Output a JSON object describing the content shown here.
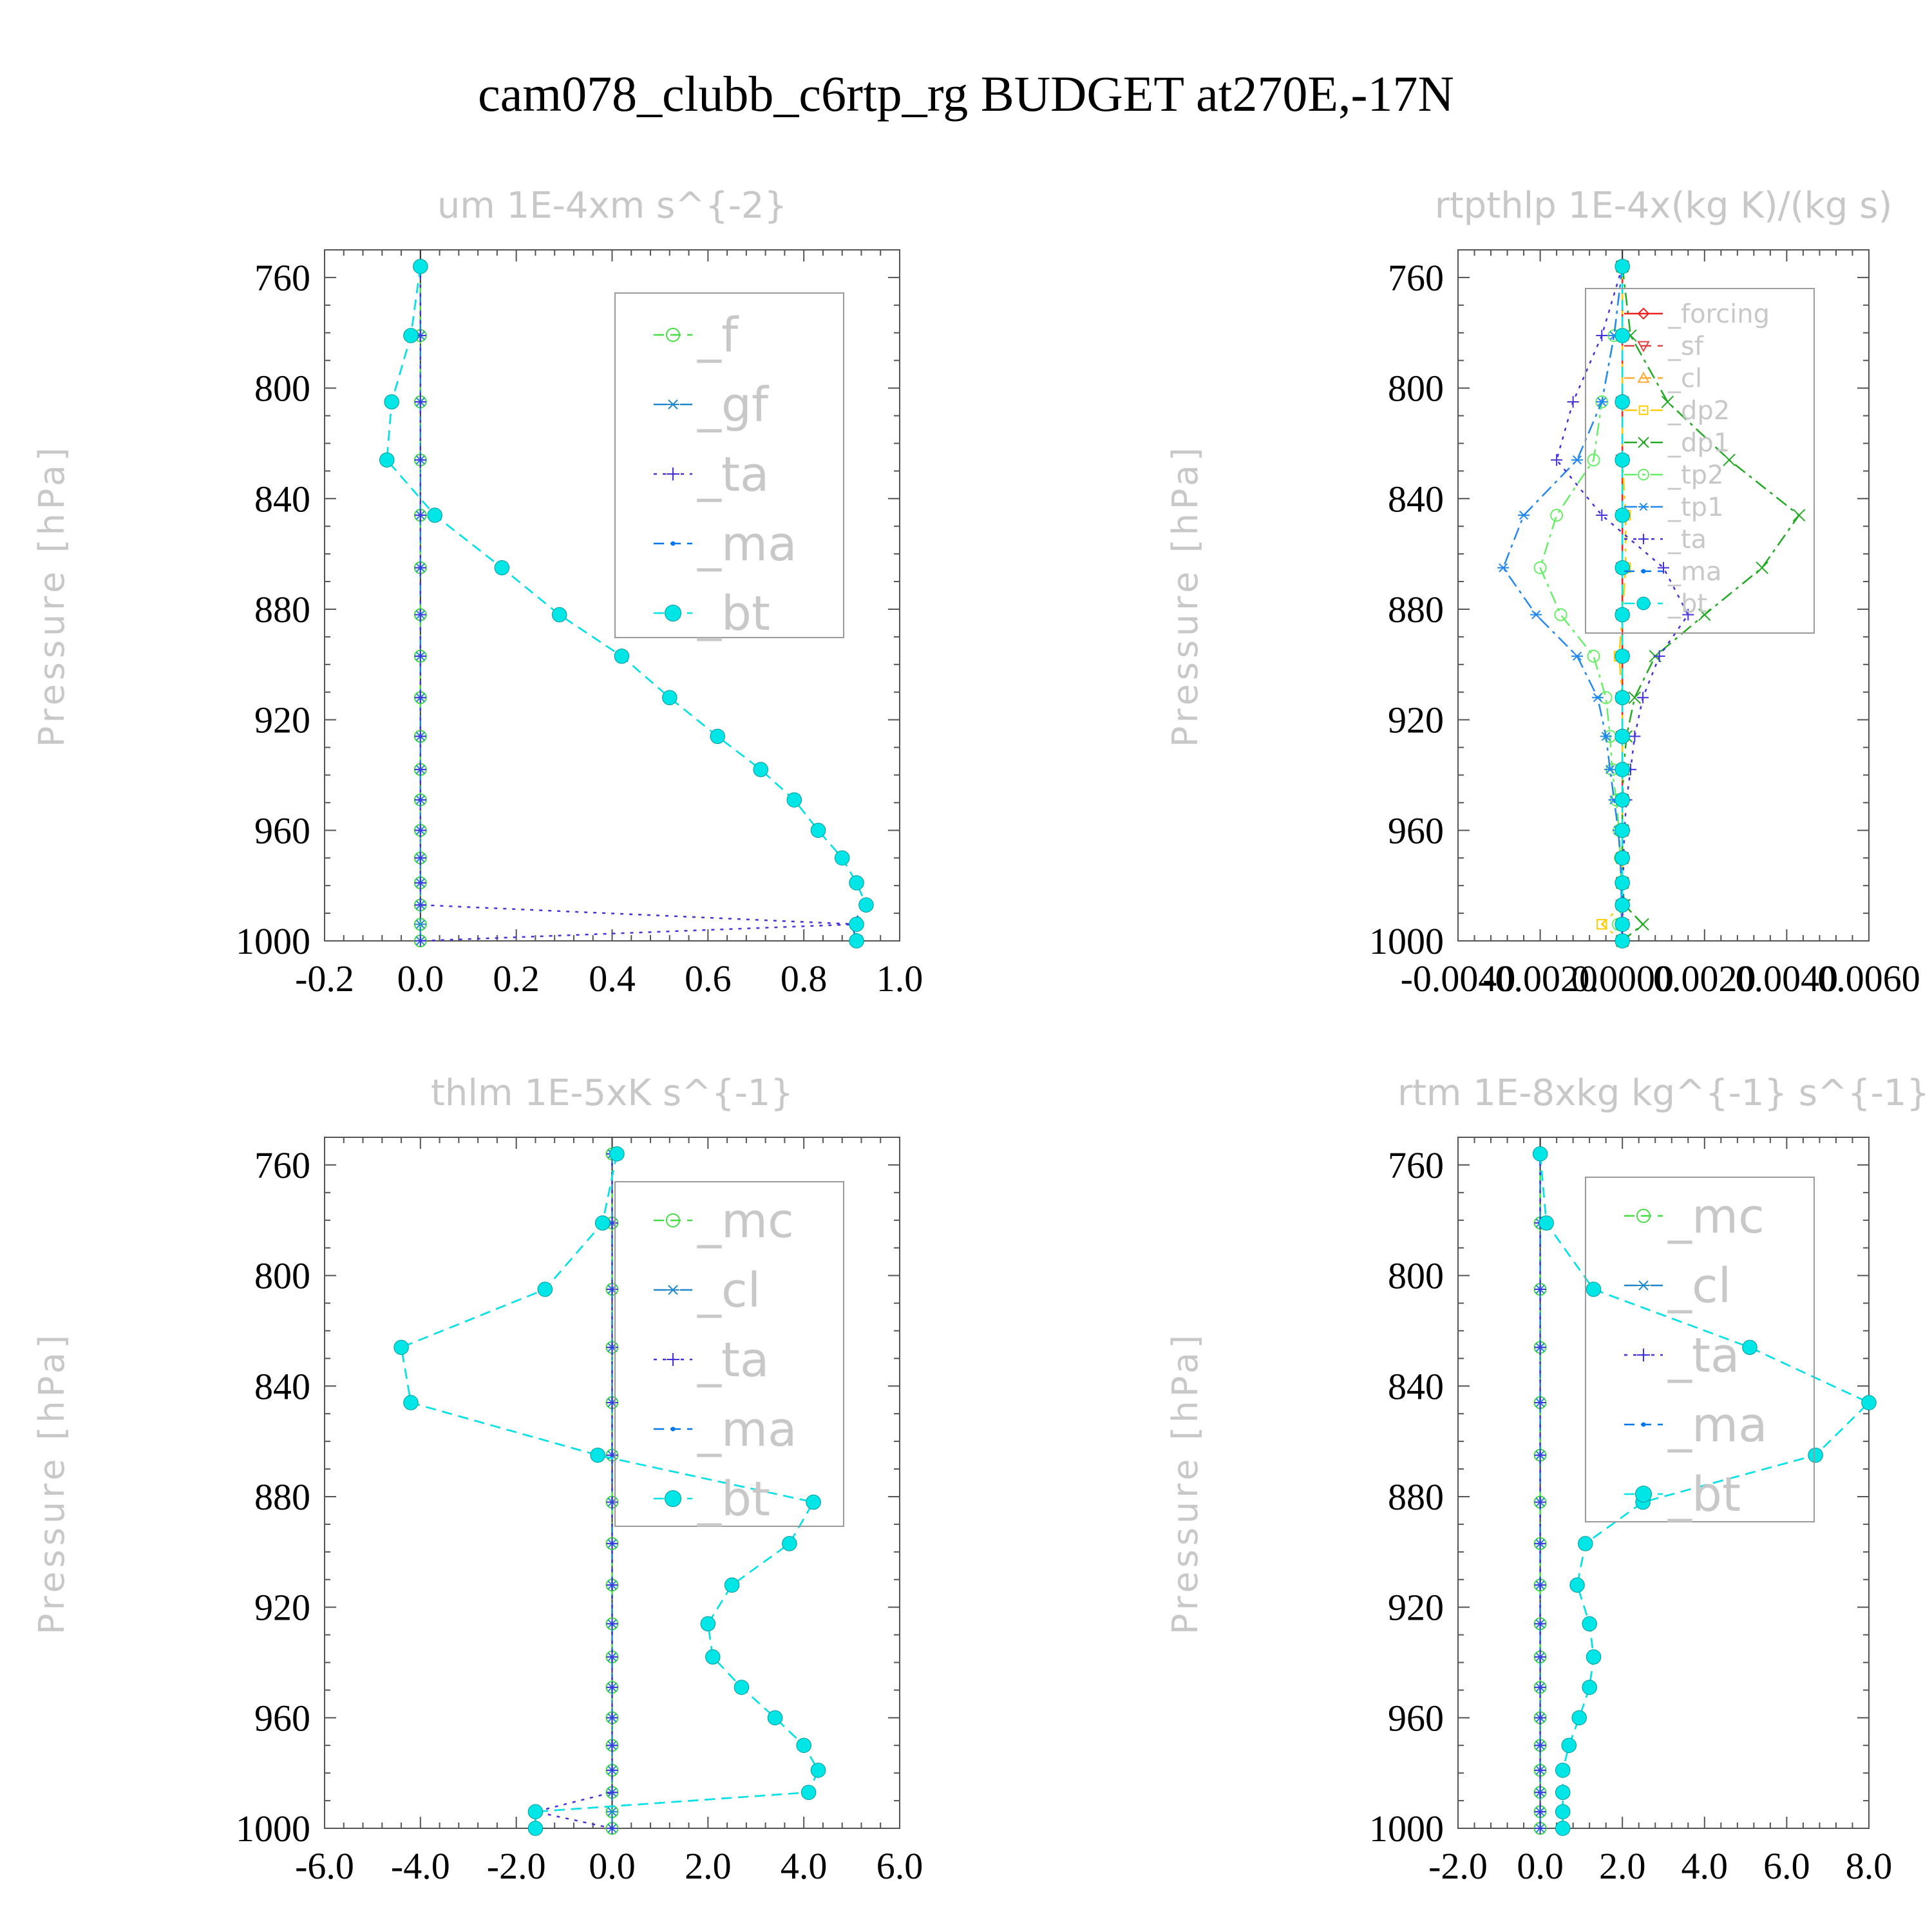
{
  "title": "cam078_clubb_c6rtp_rg  BUDGET at270E,-17N",
  "colors": {
    "f": "#44dd44",
    "gf": "#2288cc",
    "ta": "#4433dd",
    "ma": "#0077ee",
    "bt": "#00e6e6",
    "mc": "#44dd44",
    "cl": "#2288cc",
    "forcing": "#ee2222",
    "sf": "#dd4444",
    "cl_rtp": "#ffaa33",
    "dp2": "#ffcc00",
    "dp1": "#22aa22",
    "tp2": "#66ee66",
    "tp1": "#2288ee"
  },
  "chart_data": [
    {
      "type": "line",
      "title": "um  1E-4xm s^{-2}",
      "ylabel": "Pressure [hPa]",
      "xlim": [
        -0.2,
        1.0
      ],
      "ylim": [
        1000,
        750
      ],
      "xticks": [
        "-0.2",
        "0.0",
        "0.2",
        "0.4",
        "0.6",
        "0.8",
        "1.0"
      ],
      "yticks": [
        "760",
        "800",
        "840",
        "880",
        "920",
        "960",
        "1000"
      ],
      "pressure": [
        756,
        781,
        805,
        826,
        846,
        865,
        882,
        897,
        912,
        926,
        938,
        949,
        960,
        970,
        979,
        987,
        994,
        1000
      ],
      "series": [
        {
          "name": "_f",
          "key": "f",
          "style": "dash",
          "marker": "circle",
          "x": [
            0,
            0,
            0,
            0,
            0,
            0,
            0,
            0,
            0,
            0,
            0,
            0,
            0,
            0,
            0,
            0,
            0,
            0
          ]
        },
        {
          "name": "_gf",
          "key": "gf",
          "style": "dashdot",
          "marker": "asterisk",
          "x": [
            0,
            0,
            0,
            0,
            0,
            0,
            0,
            0,
            0,
            0,
            0,
            0,
            0,
            0,
            0,
            0,
            0,
            0
          ]
        },
        {
          "name": "_ta",
          "key": "ta",
          "style": "dot",
          "marker": "plus",
          "x": [
            0,
            0,
            0,
            0,
            0,
            0,
            0,
            0,
            0,
            0,
            0,
            0,
            0,
            0,
            0,
            0,
            0.91,
            0
          ]
        },
        {
          "name": "_ma",
          "key": "ma",
          "style": "dash",
          "marker": "dot",
          "x": [
            0,
            -0.02,
            -0.06,
            -0.07,
            0.03,
            0.17,
            0.29,
            0.42,
            0.52,
            0.62,
            0.71,
            0.78,
            0.83,
            0.88,
            0.91,
            0.93,
            0.9,
            0.91
          ]
        },
        {
          "name": "_bt",
          "key": "bt",
          "style": "dash",
          "marker": "filled",
          "x": [
            0,
            -0.02,
            -0.06,
            -0.07,
            0.03,
            0.17,
            0.29,
            0.42,
            0.52,
            0.62,
            0.71,
            0.78,
            0.83,
            0.88,
            0.91,
            0.93,
            0.91,
            0.91
          ]
        }
      ]
    },
    {
      "type": "line",
      "title": "rtpthlp  1E-4x(kg K)/(kg s)",
      "ylabel": "Pressure [hPa]",
      "xlim": [
        -0.004,
        0.006
      ],
      "ylim": [
        1000,
        750
      ],
      "xticks": [
        "-0.0040",
        "-0.0020",
        "0.0000",
        "0.0020",
        "0.0040",
        "0.0060"
      ],
      "yticks": [
        "760",
        "800",
        "840",
        "880",
        "920",
        "960",
        "1000"
      ],
      "pressure": [
        756,
        781,
        805,
        826,
        846,
        865,
        882,
        897,
        912,
        926,
        938,
        949,
        960,
        970,
        979,
        987,
        994,
        1000
      ],
      "series": [
        {
          "name": "_forcing",
          "key": "forcing",
          "style": "solid",
          "marker": "diamond",
          "x": [
            0,
            0,
            0,
            0,
            0,
            0,
            0,
            0,
            0,
            0,
            0,
            0,
            0,
            0,
            0,
            0,
            0,
            0
          ]
        },
        {
          "name": "_sf",
          "key": "sf",
          "style": "dash",
          "marker": "tri-down",
          "x": [
            0,
            0,
            0,
            0,
            0,
            0,
            0,
            0,
            0,
            0,
            0,
            0,
            0,
            0,
            0,
            0,
            0,
            0
          ]
        },
        {
          "name": "_cl",
          "key": "cl_rtp",
          "style": "dash",
          "marker": "tri-up",
          "x": [
            0,
            0,
            0,
            0,
            0,
            0,
            0,
            0,
            0,
            0,
            0,
            0,
            0,
            0,
            0,
            0,
            0,
            0
          ]
        },
        {
          "name": "_dp2",
          "key": "dp2",
          "style": "dashdot",
          "marker": "square",
          "x": [
            0,
            0,
            0,
            0,
            8e-05,
            8e-05,
            0,
            -8e-05,
            0,
            0,
            0,
            0,
            0,
            0,
            0,
            0,
            -0.0005,
            0
          ]
        },
        {
          "name": "_dp1",
          "key": "dp1",
          "style": "dashdot",
          "marker": "cross",
          "x": [
            0,
            0.0002,
            0.0011,
            0.0026,
            0.0043,
            0.0034,
            0.002,
            0.0008,
            0.0003,
            0.0001,
            3e-05,
            0,
            0,
            0,
            0,
            5e-05,
            0.0005,
            0
          ]
        },
        {
          "name": "_tp2",
          "key": "tp2",
          "style": "dashdot",
          "marker": "circle",
          "x": [
            0,
            -0.0002,
            -0.0005,
            -0.0007,
            -0.0016,
            -0.002,
            -0.0015,
            -0.0007,
            -0.0004,
            -0.0003,
            -0.00025,
            -0.00015,
            -8e-05,
            -5e-05,
            -3e-05,
            -2e-05,
            -0.0001,
            0
          ]
        },
        {
          "name": "_tp1",
          "key": "tp1",
          "style": "dashdot",
          "marker": "asterisk",
          "x": [
            0,
            -0.0002,
            -0.0005,
            -0.0011,
            -0.0024,
            -0.0029,
            -0.0021,
            -0.0011,
            -0.0006,
            -0.0004,
            -0.0003,
            -0.0002,
            -0.0001,
            -5e-05,
            -3e-05,
            -2e-05,
            -2e-05,
            0
          ]
        },
        {
          "name": "_ta",
          "key": "ta",
          "style": "dot",
          "marker": "plus",
          "x": [
            0,
            -0.0005,
            -0.0012,
            -0.0016,
            -0.0005,
            0.001,
            0.0016,
            0.0009,
            0.0005,
            0.0003,
            0.0002,
            0.0001,
            5e-05,
            3e-05,
            2e-05,
            1e-05,
            0,
            0
          ]
        },
        {
          "name": "_ma",
          "key": "ma",
          "style": "dash",
          "marker": "dot",
          "x": [
            0,
            0,
            0,
            0,
            0,
            0,
            0,
            0,
            0,
            0,
            0,
            0,
            0,
            0,
            0,
            0,
            0,
            0
          ]
        },
        {
          "name": "_bt",
          "key": "bt",
          "style": "dash",
          "marker": "filled",
          "x": [
            0,
            0,
            0,
            0,
            0,
            0,
            0,
            0,
            0,
            0,
            0,
            0,
            0,
            0,
            0,
            0,
            0,
            0
          ]
        }
      ]
    },
    {
      "type": "line",
      "title": "thlm  1E-5xK s^{-1}",
      "ylabel": "Pressure [hPa]",
      "xlim": [
        -6.0,
        6.0
      ],
      "ylim": [
        1000,
        750
      ],
      "xticks": [
        "-6.0",
        "-4.0",
        "-2.0",
        "0.0",
        "2.0",
        "4.0",
        "6.0"
      ],
      "yticks": [
        "760",
        "800",
        "840",
        "880",
        "920",
        "960",
        "1000"
      ],
      "pressure": [
        756,
        781,
        805,
        826,
        846,
        865,
        882,
        897,
        912,
        926,
        938,
        949,
        960,
        970,
        979,
        987,
        994,
        1000
      ],
      "series": [
        {
          "name": "_mc",
          "key": "mc",
          "style": "dash",
          "marker": "circle",
          "x": [
            0,
            0,
            0,
            0,
            0,
            0,
            0,
            0,
            0,
            0,
            0,
            0,
            0,
            0,
            0,
            0,
            0,
            0
          ]
        },
        {
          "name": "_cl",
          "key": "cl",
          "style": "dashdot",
          "marker": "asterisk",
          "x": [
            0,
            0,
            0,
            0,
            0,
            0,
            0,
            0,
            0,
            0,
            0,
            0,
            0,
            0,
            0,
            0,
            0,
            0
          ]
        },
        {
          "name": "_ta",
          "key": "ta",
          "style": "dot",
          "marker": "plus",
          "x": [
            0,
            0,
            0,
            0,
            0,
            0,
            0,
            0,
            0,
            0,
            0,
            0,
            0,
            0,
            0,
            0,
            -1.6,
            0
          ]
        },
        {
          "name": "_ma",
          "key": "ma",
          "style": "dash",
          "marker": "dot",
          "x": [
            0.1,
            -0.2,
            -1.4,
            -4.4,
            -4.2,
            -0.3,
            4.2,
            3.7,
            2.5,
            2.0,
            2.1,
            2.7,
            3.4,
            4.0,
            4.3,
            4.1,
            -1.6,
            -1.6
          ]
        },
        {
          "name": "_bt",
          "key": "bt",
          "style": "dash",
          "marker": "filled",
          "x": [
            0.1,
            -0.2,
            -1.4,
            -4.4,
            -4.2,
            -0.3,
            4.2,
            3.7,
            2.5,
            2.0,
            2.1,
            2.7,
            3.4,
            4.0,
            4.3,
            4.1,
            -1.6,
            -1.6
          ]
        }
      ]
    },
    {
      "type": "line",
      "title": "rtm  1E-8xkg kg^{-1} s^{-1}",
      "ylabel": "Pressure [hPa]",
      "xlim": [
        -2.0,
        8.0
      ],
      "ylim": [
        1000,
        750
      ],
      "xticks": [
        "-2.0",
        "0.0",
        "2.0",
        "4.0",
        "6.0",
        "8.0"
      ],
      "yticks": [
        "760",
        "800",
        "840",
        "880",
        "920",
        "960",
        "1000"
      ],
      "pressure": [
        756,
        781,
        805,
        826,
        846,
        865,
        882,
        897,
        912,
        926,
        938,
        949,
        960,
        970,
        979,
        987,
        994,
        1000
      ],
      "series": [
        {
          "name": "_mc",
          "key": "mc",
          "style": "dash",
          "marker": "circle",
          "x": [
            0,
            0,
            0,
            0,
            0,
            0,
            0,
            0,
            0,
            0,
            0,
            0,
            0,
            0,
            0,
            0,
            0,
            0
          ]
        },
        {
          "name": "_cl",
          "key": "cl",
          "style": "dashdot",
          "marker": "asterisk",
          "x": [
            0,
            0,
            0,
            0,
            0,
            0,
            0,
            0,
            0,
            0,
            0,
            0,
            0,
            0,
            0,
            0,
            0,
            0
          ]
        },
        {
          "name": "_ta",
          "key": "ta",
          "style": "dot",
          "marker": "plus",
          "x": [
            0,
            0,
            0,
            0,
            0,
            0,
            0,
            0,
            0,
            0,
            0,
            0,
            0,
            0,
            0,
            0,
            0,
            0
          ]
        },
        {
          "name": "_ma",
          "key": "ma",
          "style": "dash",
          "marker": "dot",
          "x": [
            0,
            0.15,
            1.3,
            5.1,
            8.0,
            6.7,
            2.5,
            1.1,
            0.9,
            1.2,
            1.3,
            1.2,
            0.95,
            0.7,
            0.55,
            0.55,
            0.55,
            0.55
          ]
        },
        {
          "name": "_bt",
          "key": "bt",
          "style": "dash",
          "marker": "filled",
          "x": [
            0,
            0.15,
            1.3,
            5.1,
            8.0,
            6.7,
            2.5,
            1.1,
            0.9,
            1.2,
            1.3,
            1.2,
            0.95,
            0.7,
            0.55,
            0.55,
            0.55,
            0.55
          ]
        }
      ]
    }
  ]
}
